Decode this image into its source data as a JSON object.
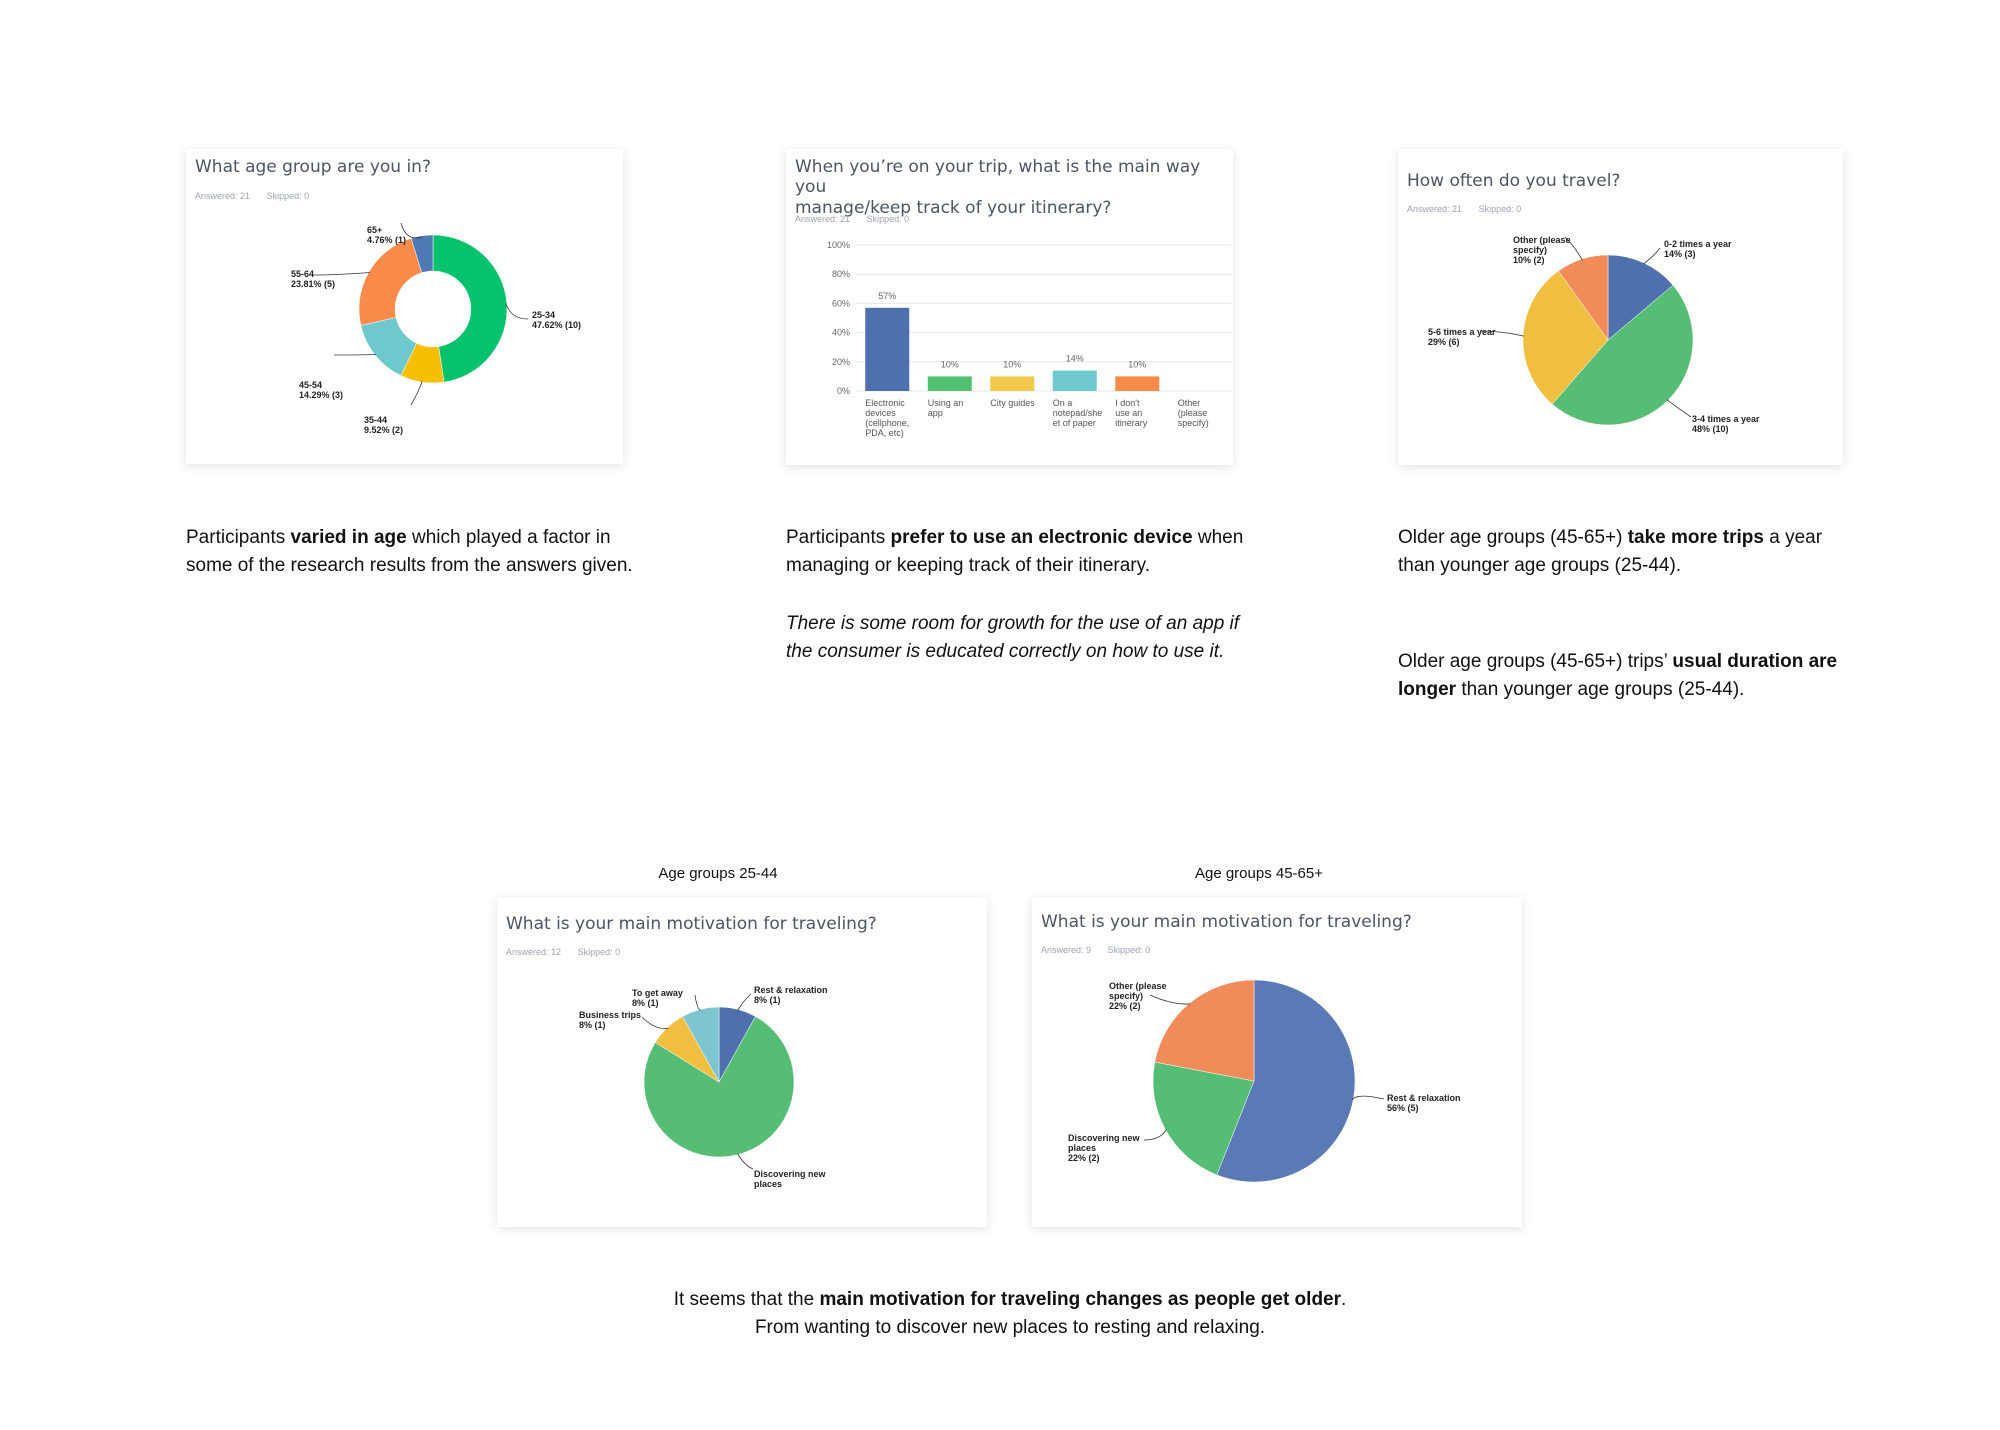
{
  "card1": {
    "question": "What age group are you in?",
    "answered": "Answered: 21",
    "skipped": "Skipped: 0"
  },
  "card2": {
    "question_line1": "When you’re on your trip, what is the main way you",
    "question_line2": "manage/keep track of your itinerary?",
    "answered": "Answered: 21",
    "skipped": "Skipped: 0"
  },
  "card3": {
    "question": "How often do you travel?",
    "answered": "Answered: 21",
    "skipped": "Skipped: 0"
  },
  "card4": {
    "question": "What is your main motivation for traveling?",
    "answered": "Answered: 12",
    "skipped": "Skipped: 0"
  },
  "card5": {
    "question": "What is your main motivation for traveling?",
    "answered": "Answered: 9",
    "skipped": "Skipped: 0"
  },
  "text": {
    "p1_a": "Participants ",
    "p1_b": "varied in age",
    "p1_c": " which played a factor in some of the research results from the answers given.",
    "p2_a": "Participants ",
    "p2_b": "prefer to use an electronic device",
    "p2_c": " when managing or keeping track of their itinerary.",
    "p2_italic": "There is some room for growth for the use of an app if the consumer is educated correctly on how to use it.",
    "p3_a": "Older age groups (45-65+) ",
    "p3_b": "take more trips",
    "p3_c": " a year than younger age groups (25-44).",
    "p4_a": "Older age groups (45-65+) trips’ ",
    "p4_b": "usual duration are longer",
    "p4_c": " than younger age groups (25-44).",
    "group1": "Age groups 25-44",
    "group2": "Age groups 45-65+",
    "bottom_a": "It seems that the ",
    "bottom_b": "main motivation for traveling changes as people get older",
    "bottom_c": ".",
    "bottom_line2": "From wanting to discover new places to resting and relaxing."
  },
  "chart_data": [
    {
      "type": "pie",
      "donut": true,
      "title": "What age group are you in?",
      "categories": [
        "25-34",
        "35-44",
        "45-54",
        "55-64",
        "65+"
      ],
      "values": [
        47.62,
        9.52,
        14.29,
        23.81,
        4.76
      ],
      "counts": [
        10,
        2,
        3,
        5,
        1
      ],
      "labels": [
        [
          "25-34",
          "47.62% (10)"
        ],
        [
          "35-44",
          "9.52% (2)"
        ],
        [
          "45-54",
          "14.29% (3)"
        ],
        [
          "55-64",
          "23.81% (5)"
        ],
        [
          "65+",
          "4.76% (1)"
        ]
      ],
      "colors": [
        "#06c26c",
        "#f6c000",
        "#6ec9cc",
        "#f98c4a",
        "#4e79b4"
      ]
    },
    {
      "type": "bar",
      "title": "When you’re on your trip, what is the main way you manage/keep track of your itinerary?",
      "categories": [
        [
          "Electronic",
          "devices",
          "(cellphone,",
          "PDA, etc)"
        ],
        [
          "Using an",
          "app"
        ],
        [
          "City guides"
        ],
        [
          "On a",
          "notepad/she",
          "et of paper"
        ],
        [
          "I don't",
          "use an",
          "itinerary"
        ],
        [
          "Other",
          "(please",
          "specify)"
        ]
      ],
      "values": [
        57,
        10,
        10,
        14,
        10,
        0
      ],
      "value_labels": [
        "57%",
        "10%",
        "10%",
        "14%",
        "10%",
        ""
      ],
      "yticks": [
        "0%",
        "20%",
        "40%",
        "60%",
        "80%",
        "100%"
      ],
      "ylim": [
        0,
        100
      ],
      "colors": [
        "#4e71ad",
        "#52c072",
        "#f2c94c",
        "#6ec9cc",
        "#f98c4a",
        "#aaaaaa"
      ]
    },
    {
      "type": "pie",
      "title": "How often do you travel?",
      "categories": [
        "0-2 times a year",
        "3-4 times a year",
        "5-6 times a year",
        "Other (please specify)"
      ],
      "values": [
        14,
        48,
        29,
        10
      ],
      "labels": [
        [
          "0-2 times a year",
          "14% (3)"
        ],
        [
          "3-4 times a year",
          "48% (10)"
        ],
        [
          "5-6 times a year",
          "29% (6)"
        ],
        [
          "Other (please",
          "specify)",
          "",
          "10% (2)"
        ]
      ],
      "colors": [
        "#4e71ad",
        "#55be74",
        "#f0bf40",
        "#f18b5a"
      ]
    },
    {
      "type": "pie",
      "title": "What is your main motivation for traveling?",
      "categories": [
        "Rest & relaxation",
        "Discovering new places",
        "Business trips",
        "To get away"
      ],
      "values": [
        8,
        75,
        8,
        8
      ],
      "labels": [
        [
          "Rest & relaxation",
          "8% (1)"
        ],
        [
          "Discovering new",
          "places"
        ],
        [
          "Business trips",
          "8% (1)"
        ],
        [
          "To get away",
          "8% (1)"
        ]
      ],
      "colors": [
        "#4e71ad",
        "#55be74",
        "#f0bf40",
        "#7ec6cf"
      ]
    },
    {
      "type": "pie",
      "title": "What is your main motivation for traveling?",
      "categories": [
        "Rest & relaxation",
        "Discovering new places",
        "Other (please specify)"
      ],
      "values": [
        56,
        22,
        22
      ],
      "labels": [
        [
          "Rest & relaxation",
          "56% (5)"
        ],
        [
          "Discovering new",
          "places",
          "",
          "22% (2)"
        ],
        [
          "Other (please",
          "specify)",
          "",
          "22% (2)"
        ]
      ],
      "colors": [
        "#5a7ab5",
        "#55be74",
        "#f18b5a"
      ]
    }
  ]
}
